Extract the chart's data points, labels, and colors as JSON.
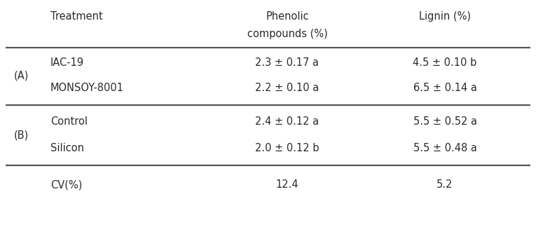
{
  "col_headers_line1": [
    "Treatment",
    "Phenolic",
    "Lignin (%)"
  ],
  "col_headers_line2": [
    "",
    "compounds (%)",
    ""
  ],
  "rows": [
    {
      "treatment": "IAC-19",
      "phenolic": "2.3 ± 0.17 a",
      "lignin": "4.5 ± 0.10 b"
    },
    {
      "treatment": "MONSOY-8001",
      "phenolic": "2.2 ± 0.10 a",
      "lignin": "6.5 ± 0.14 a"
    },
    {
      "treatment": "Control",
      "phenolic": "2.4 ± 0.12 a",
      "lignin": "5.5 ± 0.52 a"
    },
    {
      "treatment": "Silicon",
      "phenolic": "2.0 ± 0.12 b",
      "lignin": "5.5 ± 0.48 a"
    }
  ],
  "group_labels": [
    "(A)",
    "(B)"
  ],
  "cv_row": {
    "label": "CV(%)",
    "phenolic": "12.4",
    "lignin": "5.2"
  },
  "bg_color": "#ffffff",
  "text_color": "#2b2b2b",
  "fontsize": 10.5,
  "line_color": "#555555",
  "line_lw_thick": 1.6
}
